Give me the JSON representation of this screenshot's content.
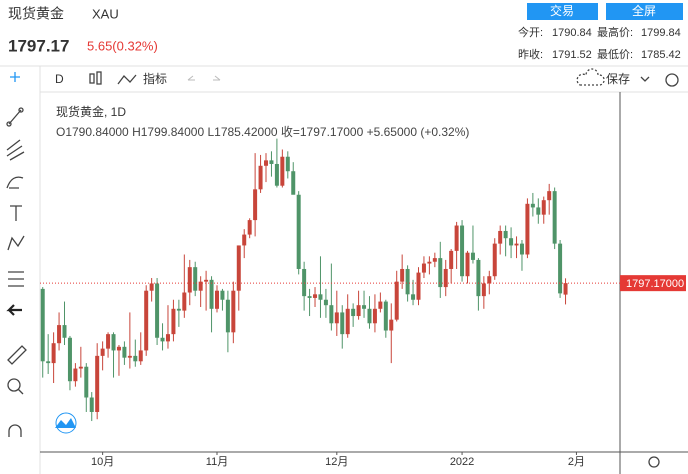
{
  "header": {
    "name": "现货黄金",
    "symbol": "XAU",
    "trade_button": "交易",
    "fullscreen_button": "全屏",
    "price": "1797.17",
    "change": "5.65(0.32%)",
    "stats": [
      [
        "今开:",
        "1790.84"
      ],
      [
        "最高价:",
        "1799.84"
      ],
      [
        "昨收:",
        "1791.52"
      ],
      [
        "最低价:",
        "1785.42"
      ]
    ]
  },
  "toolbar": {
    "interval": "D",
    "indicators": "指标",
    "save": "保存"
  },
  "legend": {
    "title": "现货黄金, 1D",
    "ohlc": "O1790.84000   H1799.84000   L1785.42000   收=1797.17000   +5.65000 (+0.32%)"
  },
  "chart_data": {
    "type": "candlestick",
    "up_color": "#c8453a",
    "down_color": "#4f9468",
    "open": [
      1794,
      1754,
      1753,
      1764,
      1774,
      1767,
      1743,
      1750,
      1751,
      1734,
      1726,
      1757,
      1761,
      1769,
      1760,
      1762,
      1756,
      1757,
      1754,
      1760,
      1793,
      1797,
      1767,
      1765,
      1769,
      1783,
      1782,
      1792,
      1806,
      1793,
      1798,
      1799,
      1783,
      1793,
      1788,
      1770,
      1793,
      1818,
      1824,
      1832,
      1849,
      1862,
      1865,
      1863,
      1851,
      1867,
      1859,
      1846,
      1805,
      1790,
      1789,
      1791,
      1788,
      1785,
      1775,
      1781,
      1769,
      1783,
      1779,
      1785,
      1783,
      1775,
      1783,
      1787,
      1771,
      1777,
      1798,
      1805,
      1791,
      1788,
      1803,
      1808,
      1809,
      1811,
      1795,
      1805,
      1815,
      1829,
      1801,
      1814,
      1810,
      1790,
      1797,
      1801,
      1819,
      1826,
      1822,
      1818,
      1819,
      1813,
      1841,
      1839,
      1835,
      1843,
      1848,
      1819,
      1790.84
    ],
    "high": [
      1795,
      1769,
      1770,
      1781,
      1787,
      1768,
      1753,
      1762,
      1753,
      1737,
      1764,
      1765,
      1770,
      1770,
      1763,
      1765,
      1781,
      1766,
      1770,
      1796,
      1800,
      1800,
      1775,
      1785,
      1788,
      1788,
      1813,
      1810,
      1809,
      1801,
      1804,
      1801,
      1796,
      1794,
      1793,
      1798,
      1818,
      1827,
      1833,
      1869,
      1868,
      1869,
      1870,
      1877,
      1871,
      1870,
      1864,
      1848,
      1809,
      1794,
      1795,
      1812,
      1794,
      1808,
      1793,
      1785,
      1791,
      1786,
      1793,
      1793,
      1790,
      1791,
      1792,
      1788,
      1786,
      1804,
      1813,
      1807,
      1799,
      1806,
      1812,
      1812,
      1814,
      1820,
      1810,
      1816,
      1831,
      1832,
      1815,
      1829,
      1811,
      1801,
      1804,
      1822,
      1829,
      1829,
      1828,
      1823,
      1821,
      1844,
      1847,
      1844,
      1845,
      1852,
      1850,
      1821,
      1799.84
    ],
    "low": [
      1745,
      1747,
      1742,
      1760,
      1763,
      1738,
      1740,
      1745,
      1726,
      1721,
      1722,
      1749,
      1756,
      1745,
      1746,
      1752,
      1750,
      1751,
      1752,
      1757,
      1787,
      1763,
      1760,
      1761,
      1765,
      1773,
      1778,
      1785,
      1790,
      1784,
      1782,
      1770,
      1781,
      1782,
      1759,
      1764,
      1782,
      1811,
      1822,
      1823,
      1847,
      1853,
      1856,
      1850,
      1850,
      1855,
      1847,
      1802,
      1782,
      1779,
      1784,
      1778,
      1778,
      1771,
      1768,
      1761,
      1767,
      1773,
      1777,
      1778,
      1772,
      1770,
      1781,
      1767,
      1753,
      1776,
      1794,
      1787,
      1785,
      1785,
      1800,
      1802,
      1806,
      1789,
      1790,
      1797,
      1805,
      1798,
      1797,
      1808,
      1782,
      1783,
      1791,
      1799,
      1813,
      1812,
      1811,
      1811,
      1804,
      1811,
      1834,
      1830,
      1830,
      1835,
      1816,
      1789,
      1785.42
    ],
    "close": [
      1754,
      1753,
      1764,
      1774,
      1767,
      1743,
      1750,
      1751,
      1734,
      1726,
      1757,
      1761,
      1769,
      1760,
      1762,
      1756,
      1757,
      1754,
      1760,
      1793,
      1797,
      1767,
      1765,
      1769,
      1783,
      1782,
      1792,
      1806,
      1793,
      1798,
      1799,
      1783,
      1793,
      1788,
      1770,
      1793,
      1818,
      1824,
      1832,
      1849,
      1862,
      1865,
      1863,
      1851,
      1867,
      1859,
      1846,
      1805,
      1790,
      1789,
      1791,
      1788,
      1785,
      1775,
      1781,
      1769,
      1783,
      1779,
      1785,
      1783,
      1775,
      1783,
      1787,
      1771,
      1777,
      1798,
      1805,
      1791,
      1788,
      1803,
      1808,
      1809,
      1811,
      1795,
      1805,
      1815,
      1829,
      1801,
      1814,
      1810,
      1790,
      1797,
      1801,
      1819,
      1826,
      1822,
      1818,
      1819,
      1813,
      1841,
      1839,
      1835,
      1843,
      1848,
      1819,
      1791.52,
      1797.17
    ],
    "xlim": [
      -0.5,
      106
    ],
    "ylim": [
      1705,
      1900
    ],
    "xticks": [
      {
        "value": 11,
        "label": "10月"
      },
      {
        "value": 32,
        "label": "11月"
      },
      {
        "value": 54,
        "label": "12月"
      },
      {
        "value": 77,
        "label": "2022"
      },
      {
        "value": 98,
        "label": "2月"
      }
    ],
    "last_price": {
      "value": 1797.17,
      "label": "1797.17000"
    },
    "last_price_color": "#e53935"
  }
}
